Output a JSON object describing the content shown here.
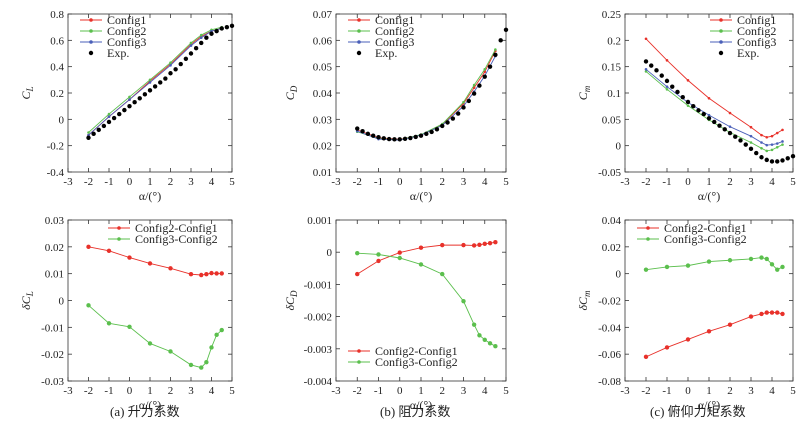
{
  "figure_note": "",
  "chart_data": [
    {
      "type": "line",
      "ylabel": "C_L",
      "xlabel": "α/(°)",
      "caption": "(a)  升力系数",
      "xlim": [
        -3,
        5
      ],
      "ylim": [
        -0.4,
        0.8
      ],
      "xticks": [
        -3,
        -2,
        -1,
        0,
        1,
        2,
        3,
        4,
        5
      ],
      "yticks": [
        -0.4,
        -0.2,
        0,
        0.2,
        0.4,
        0.6,
        0.8
      ],
      "legend": "top-left",
      "series": [
        {
          "name": "Config1",
          "color": "#e8312a",
          "marker": "dot",
          "x": [
            -2,
            -1,
            0,
            1,
            2,
            3,
            3.5,
            4,
            4.5
          ],
          "y": [
            -0.12,
            0.02,
            0.15,
            0.29,
            0.42,
            0.57,
            0.63,
            0.67,
            0.69
          ]
        },
        {
          "name": "Config2",
          "color": "#5bbf4d",
          "marker": "dot",
          "x": [
            -2,
            -1,
            0,
            1,
            2,
            3,
            3.5,
            4,
            4.5
          ],
          "y": [
            -0.1,
            0.04,
            0.17,
            0.3,
            0.43,
            0.58,
            0.64,
            0.68,
            0.7
          ]
        },
        {
          "name": "Config3",
          "color": "#4a5fb8",
          "marker": "dot",
          "x": [
            -2,
            -1,
            0,
            1,
            2,
            3,
            3.5,
            4,
            4.5
          ],
          "y": [
            -0.12,
            0.02,
            0.15,
            0.28,
            0.41,
            0.56,
            0.62,
            0.67,
            0.69
          ]
        },
        {
          "name": "Exp.",
          "color": "#000000",
          "marker": "big",
          "x": [
            -2,
            -1.75,
            -1.5,
            -1.25,
            -1,
            -0.75,
            -0.5,
            -0.25,
            0,
            0.25,
            0.5,
            0.75,
            1,
            1.25,
            1.5,
            1.75,
            2,
            2.25,
            2.5,
            2.75,
            3,
            3.25,
            3.5,
            3.75,
            4,
            4.25,
            4.5,
            4.75,
            5
          ],
          "y": [
            -0.14,
            -0.11,
            -0.08,
            -0.05,
            -0.02,
            0.01,
            0.04,
            0.07,
            0.1,
            0.13,
            0.16,
            0.19,
            0.22,
            0.25,
            0.28,
            0.31,
            0.35,
            0.38,
            0.42,
            0.46,
            0.5,
            0.54,
            0.58,
            0.62,
            0.65,
            0.67,
            0.69,
            0.7,
            0.71
          ]
        }
      ]
    },
    {
      "type": "line",
      "ylabel": "C_D",
      "xlabel": "α/(°)",
      "caption": "(b)  阻力系数",
      "xlim": [
        -3,
        5
      ],
      "ylim": [
        0.01,
        0.07
      ],
      "xticks": [
        -3,
        -2,
        -1,
        0,
        1,
        2,
        3,
        4,
        5
      ],
      "yticks": [
        0.01,
        0.02,
        0.03,
        0.04,
        0.05,
        0.06,
        0.07
      ],
      "legend": "top-left",
      "series": [
        {
          "name": "Config1",
          "color": "#e8312a",
          "marker": "dot",
          "x": [
            -2,
            -1,
            0,
            1,
            2,
            3,
            3.5,
            4,
            4.5
          ],
          "y": [
            0.026,
            0.023,
            0.0224,
            0.024,
            0.028,
            0.036,
            0.042,
            0.048,
            0.056
          ]
        },
        {
          "name": "Config2",
          "color": "#5bbf4d",
          "marker": "dot",
          "x": [
            -2,
            -1,
            0,
            1,
            2,
            3,
            3.5,
            4,
            4.5
          ],
          "y": [
            0.0253,
            0.0227,
            0.0222,
            0.0242,
            0.0282,
            0.0365,
            0.043,
            0.049,
            0.0565
          ]
        },
        {
          "name": "Config3",
          "color": "#4a5fb8",
          "marker": "dot",
          "x": [
            -2,
            -1,
            0,
            1,
            2,
            3,
            3.5,
            4,
            4.5
          ],
          "y": [
            0.0255,
            0.0225,
            0.0221,
            0.024,
            0.0277,
            0.035,
            0.0405,
            0.0465,
            0.054
          ]
        },
        {
          "name": "Exp.",
          "color": "#000000",
          "marker": "big",
          "x": [
            -2,
            -1.75,
            -1.5,
            -1.25,
            -1,
            -0.75,
            -0.5,
            -0.25,
            0,
            0.25,
            0.5,
            0.75,
            1,
            1.25,
            1.5,
            1.75,
            2,
            2.25,
            2.5,
            2.75,
            3,
            3.25,
            3.5,
            3.75,
            4,
            4.25,
            4.5,
            4.75,
            5
          ],
          "y": [
            0.0265,
            0.0255,
            0.0245,
            0.0238,
            0.0232,
            0.0228,
            0.0225,
            0.0224,
            0.0224,
            0.0226,
            0.0229,
            0.0233,
            0.0238,
            0.0245,
            0.0252,
            0.0262,
            0.0275,
            0.0288,
            0.0303,
            0.0322,
            0.0345,
            0.037,
            0.0398,
            0.0428,
            0.0462,
            0.05,
            0.0545,
            0.06,
            0.064
          ]
        }
      ]
    },
    {
      "type": "line",
      "ylabel": "C_m",
      "xlabel": "α/(°)",
      "caption": "(c)  俯仰力矩系数",
      "xlim": [
        -3,
        5
      ],
      "ylim": [
        -0.05,
        0.25
      ],
      "xticks": [
        -3,
        -2,
        -1,
        0,
        1,
        2,
        3,
        4,
        5
      ],
      "yticks": [
        -0.05,
        0,
        0.05,
        0.1,
        0.15,
        0.2,
        0.25
      ],
      "legend": "top-right",
      "series": [
        {
          "name": "Config1",
          "color": "#e8312a",
          "marker": "dot",
          "x": [
            -2,
            -1,
            0,
            1,
            2,
            3,
            3.5,
            3.75,
            4,
            4.25,
            4.5
          ],
          "y": [
            0.203,
            0.162,
            0.124,
            0.09,
            0.062,
            0.035,
            0.02,
            0.016,
            0.018,
            0.024,
            0.03
          ]
        },
        {
          "name": "Config2",
          "color": "#5bbf4d",
          "marker": "dot",
          "x": [
            -2,
            -1,
            0,
            1,
            2,
            3,
            3.5,
            3.75,
            4,
            4.25,
            4.5
          ],
          "y": [
            0.141,
            0.107,
            0.076,
            0.049,
            0.025,
            0.006,
            -0.005,
            -0.01,
            -0.008,
            -0.003,
            0.002
          ]
        },
        {
          "name": "Config3",
          "color": "#4a5fb8",
          "marker": "dot",
          "x": [
            -2,
            -1,
            0,
            1,
            2,
            3,
            3.5,
            3.75,
            4,
            4.25,
            4.5
          ],
          "y": [
            0.145,
            0.112,
            0.082,
            0.058,
            0.036,
            0.018,
            0.006,
            0.001,
            0.002,
            0.004,
            0.008
          ]
        },
        {
          "name": "Exp.",
          "color": "#000000",
          "marker": "big",
          "x": [
            -2,
            -1.75,
            -1.5,
            -1.25,
            -1,
            -0.75,
            -0.5,
            -0.25,
            0,
            0.25,
            0.5,
            0.75,
            1,
            1.25,
            1.5,
            1.75,
            2,
            2.25,
            2.5,
            2.75,
            3,
            3.25,
            3.5,
            3.75,
            4,
            4.25,
            4.5,
            4.75,
            5
          ],
          "y": [
            0.16,
            0.152,
            0.143,
            0.133,
            0.123,
            0.112,
            0.102,
            0.092,
            0.083,
            0.075,
            0.067,
            0.06,
            0.052,
            0.045,
            0.038,
            0.031,
            0.024,
            0.017,
            0.01,
            0.002,
            -0.006,
            -0.014,
            -0.022,
            -0.027,
            -0.03,
            -0.03,
            -0.028,
            -0.024,
            -0.02
          ]
        }
      ]
    },
    {
      "type": "line",
      "ylabel": "δC_L",
      "xlabel": "α/(°)",
      "xlim": [
        -3,
        5
      ],
      "ylim": [
        -0.03,
        0.03
      ],
      "xticks": [
        -3,
        -2,
        -1,
        0,
        1,
        2,
        3,
        4,
        5
      ],
      "yticks": [
        -0.03,
        -0.02,
        -0.01,
        0,
        0.01,
        0.02,
        0.03
      ],
      "legend": "top-right",
      "series": [
        {
          "name": "Config2-Config1",
          "color": "#e8312a",
          "marker": "circle",
          "x": [
            -2,
            -1,
            0,
            1,
            2,
            3,
            3.5,
            3.75,
            4,
            4.25,
            4.5
          ],
          "y": [
            0.02,
            0.0185,
            0.016,
            0.0138,
            0.012,
            0.0098,
            0.0095,
            0.0098,
            0.0102,
            0.0101,
            0.0101
          ]
        },
        {
          "name": "Config3-Config2",
          "color": "#5bbf4d",
          "marker": "circle",
          "x": [
            -2,
            -1,
            0,
            1,
            2,
            3,
            3.5,
            3.75,
            4,
            4.25,
            4.5
          ],
          "y": [
            -0.0018,
            -0.0085,
            -0.0098,
            -0.016,
            -0.019,
            -0.024,
            -0.025,
            -0.023,
            -0.0175,
            -0.0128,
            -0.011
          ]
        }
      ]
    },
    {
      "type": "line",
      "ylabel": "δC_D",
      "xlabel": "α/(°)",
      "xlim": [
        -3,
        5
      ],
      "ylim": [
        -0.004,
        0.001
      ],
      "xticks": [
        -3,
        -2,
        -1,
        0,
        1,
        2,
        3,
        4,
        5
      ],
      "yticks": [
        -0.004,
        -0.003,
        -0.002,
        -0.001,
        0,
        0.001
      ],
      "legend": "bottom-left",
      "series": [
        {
          "name": "Config2-Config1",
          "color": "#e8312a",
          "marker": "circle",
          "x": [
            -2,
            -1,
            0,
            1,
            2,
            3,
            3.5,
            3.75,
            4,
            4.25,
            4.5
          ],
          "y": [
            -0.00068,
            -0.00027,
            -1e-05,
            0.00014,
            0.00022,
            0.00022,
            0.00021,
            0.00023,
            0.00026,
            0.00028,
            0.00031
          ]
        },
        {
          "name": "Config3-Config2",
          "color": "#5bbf4d",
          "marker": "circle",
          "x": [
            -2,
            -1,
            0,
            1,
            2,
            3,
            3.5,
            3.75,
            4,
            4.25,
            4.5
          ],
          "y": [
            -3e-05,
            -7e-05,
            -0.00018,
            -0.00038,
            -0.00068,
            -0.00152,
            -0.00225,
            -0.00258,
            -0.00272,
            -0.00283,
            -0.00292
          ]
        }
      ]
    },
    {
      "type": "line",
      "ylabel": "δC_m",
      "xlabel": "α/(°)",
      "xlim": [
        -3,
        5
      ],
      "ylim": [
        -0.08,
        0.04
      ],
      "xticks": [
        -3,
        -2,
        -1,
        0,
        1,
        2,
        3,
        4,
        5
      ],
      "yticks": [
        -0.08,
        -0.06,
        -0.04,
        -0.02,
        0,
        0.02,
        0.04
      ],
      "legend": "top-left",
      "series": [
        {
          "name": "Config2-Config1",
          "color": "#e8312a",
          "marker": "circle",
          "x": [
            -2,
            -1,
            0,
            1,
            2,
            3,
            3.5,
            3.75,
            4,
            4.25,
            4.5
          ],
          "y": [
            -0.062,
            -0.055,
            -0.049,
            -0.043,
            -0.038,
            -0.032,
            -0.03,
            -0.029,
            -0.029,
            -0.029,
            -0.03
          ]
        },
        {
          "name": "Config3-Config2",
          "color": "#5bbf4d",
          "marker": "circle",
          "x": [
            -2,
            -1,
            0,
            1,
            2,
            3,
            3.5,
            3.75,
            4,
            4.25,
            4.5
          ],
          "y": [
            0.003,
            0.005,
            0.006,
            0.009,
            0.01,
            0.011,
            0.012,
            0.011,
            0.007,
            0.003,
            0.005
          ]
        }
      ]
    }
  ],
  "captions": {
    "a": "(a)  升力系数",
    "b": "(b)  阻力系数",
    "c": "(c)  俯仰力矩系数"
  }
}
